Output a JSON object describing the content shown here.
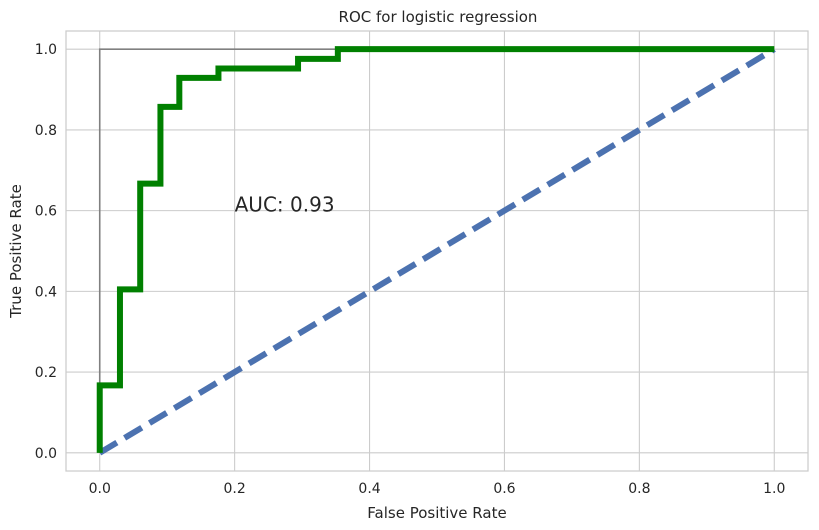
{
  "chart_data": {
    "type": "line",
    "title": "ROC for logistic regression",
    "xlabel": "False Positive Rate",
    "ylabel": "True Positive Rate",
    "xlim": [
      -0.05,
      1.05
    ],
    "ylim": [
      -0.045,
      1.045
    ],
    "xticks": [
      0.0,
      0.2,
      0.4,
      0.6,
      0.8,
      1.0
    ],
    "yticks": [
      0.0,
      0.2,
      0.4,
      0.6,
      0.8,
      1.0
    ],
    "xtick_labels": [
      "0.0",
      "0.2",
      "0.4",
      "0.6",
      "0.8",
      "1.0"
    ],
    "ytick_labels": [
      "0.0",
      "0.2",
      "0.4",
      "0.6",
      "0.8",
      "1.0"
    ],
    "grid": true,
    "annotation": {
      "text": "AUC: 0.93",
      "x": 0.2,
      "y": 0.6
    },
    "series": [
      {
        "style": "solid-thin",
        "color": "#808080",
        "x": [
          0.0,
          0.0,
          1.0
        ],
        "y": [
          0.0,
          1.0,
          1.0
        ]
      },
      {
        "style": "dashed-thick",
        "color": "#4c72b0",
        "x": [
          0.0,
          1.0
        ],
        "y": [
          0.0,
          1.0
        ]
      },
      {
        "style": "solid-thick",
        "color": "#008000",
        "x": [
          0.0,
          0.0,
          0.03,
          0.03,
          0.06,
          0.06,
          0.09,
          0.09,
          0.118,
          0.118,
          0.176,
          0.176,
          0.294,
          0.294,
          0.353,
          0.353,
          1.0
        ],
        "y": [
          0.0,
          0.167,
          0.167,
          0.405,
          0.405,
          0.667,
          0.667,
          0.857,
          0.857,
          0.929,
          0.929,
          0.952,
          0.952,
          0.976,
          0.976,
          1.0,
          1.0
        ]
      }
    ]
  }
}
